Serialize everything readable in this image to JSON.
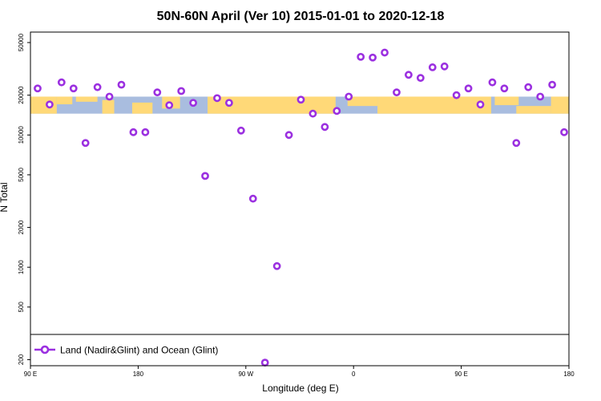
{
  "chart_data": {
    "type": "scatter",
    "title": "50N-60N April (Ver 10)   2015-01-01 to 2020-12-18",
    "xlabel": "Longitude (deg E)",
    "ylabel": "N Total",
    "xlim": [
      90,
      540
    ],
    "ylim": [
      180,
      60000
    ],
    "y_scale": "log",
    "x_ticks": [
      {
        "value": 90,
        "label": "90 E"
      },
      {
        "value": 180,
        "label": "180"
      },
      {
        "value": 270,
        "label": "90 W"
      },
      {
        "value": 360,
        "label": "0"
      },
      {
        "value": 450,
        "label": "90 E"
      },
      {
        "value": 540,
        "label": "180"
      }
    ],
    "y_ticks": [
      200,
      500,
      1000,
      2000,
      5000,
      10000,
      20000,
      50000
    ],
    "y_tick_labels": [
      "200",
      "500",
      "1000",
      "2000",
      "5000",
      "10000",
      "20000",
      "50000"
    ],
    "legend": {
      "label": "Land (Nadir&Glint) and Ocean (Glint)",
      "placement": "bottom-left"
    },
    "band": {
      "y_range": [
        14500,
        19500
      ],
      "ocean_color": "#a9bddf",
      "land_color": "#ffd978"
    },
    "grid": false,
    "series": [
      {
        "name": "Land (Nadir&Glint) and Ocean (Glint)",
        "color": "#9b30e0",
        "points": [
          {
            "x": 96,
            "y": 22500
          },
          {
            "x": 106,
            "y": 17000
          },
          {
            "x": 116,
            "y": 25000
          },
          {
            "x": 126,
            "y": 22500
          },
          {
            "x": 136,
            "y": 8700
          },
          {
            "x": 146,
            "y": 23000
          },
          {
            "x": 156,
            "y": 19500
          },
          {
            "x": 166,
            "y": 24000
          },
          {
            "x": 176,
            "y": 10500
          },
          {
            "x": 186,
            "y": 10500
          },
          {
            "x": 196,
            "y": 21000
          },
          {
            "x": 206,
            "y": 16800
          },
          {
            "x": 216,
            "y": 21500
          },
          {
            "x": 226,
            "y": 17500
          },
          {
            "x": 236,
            "y": 4900
          },
          {
            "x": 246,
            "y": 19000
          },
          {
            "x": 256,
            "y": 17500
          },
          {
            "x": 266,
            "y": 10800
          },
          {
            "x": 276,
            "y": 3300
          },
          {
            "x": 286,
            "y": 190
          },
          {
            "x": 296,
            "y": 1020
          },
          {
            "x": 306,
            "y": 10000
          },
          {
            "x": 316,
            "y": 18500
          },
          {
            "x": 326,
            "y": 14500
          },
          {
            "x": 336,
            "y": 11500
          },
          {
            "x": 346,
            "y": 15200
          },
          {
            "x": 356,
            "y": 19500
          },
          {
            "x": 366,
            "y": 39000
          },
          {
            "x": 376,
            "y": 38500
          },
          {
            "x": 386,
            "y": 42000
          },
          {
            "x": 396,
            "y": 21000
          },
          {
            "x": 406,
            "y": 28500
          },
          {
            "x": 416,
            "y": 27000
          },
          {
            "x": 426,
            "y": 32500
          },
          {
            "x": 436,
            "y": 33000
          },
          {
            "x": 446,
            "y": 20000
          },
          {
            "x": 456,
            "y": 22500
          },
          {
            "x": 466,
            "y": 17000
          },
          {
            "x": 476,
            "y": 25000
          },
          {
            "x": 486,
            "y": 22500
          },
          {
            "x": 496,
            "y": 8700
          },
          {
            "x": 506,
            "y": 23000
          },
          {
            "x": 516,
            "y": 19500
          },
          {
            "x": 526,
            "y": 24000
          },
          {
            "x": 536,
            "y": 10500
          }
        ]
      }
    ]
  }
}
